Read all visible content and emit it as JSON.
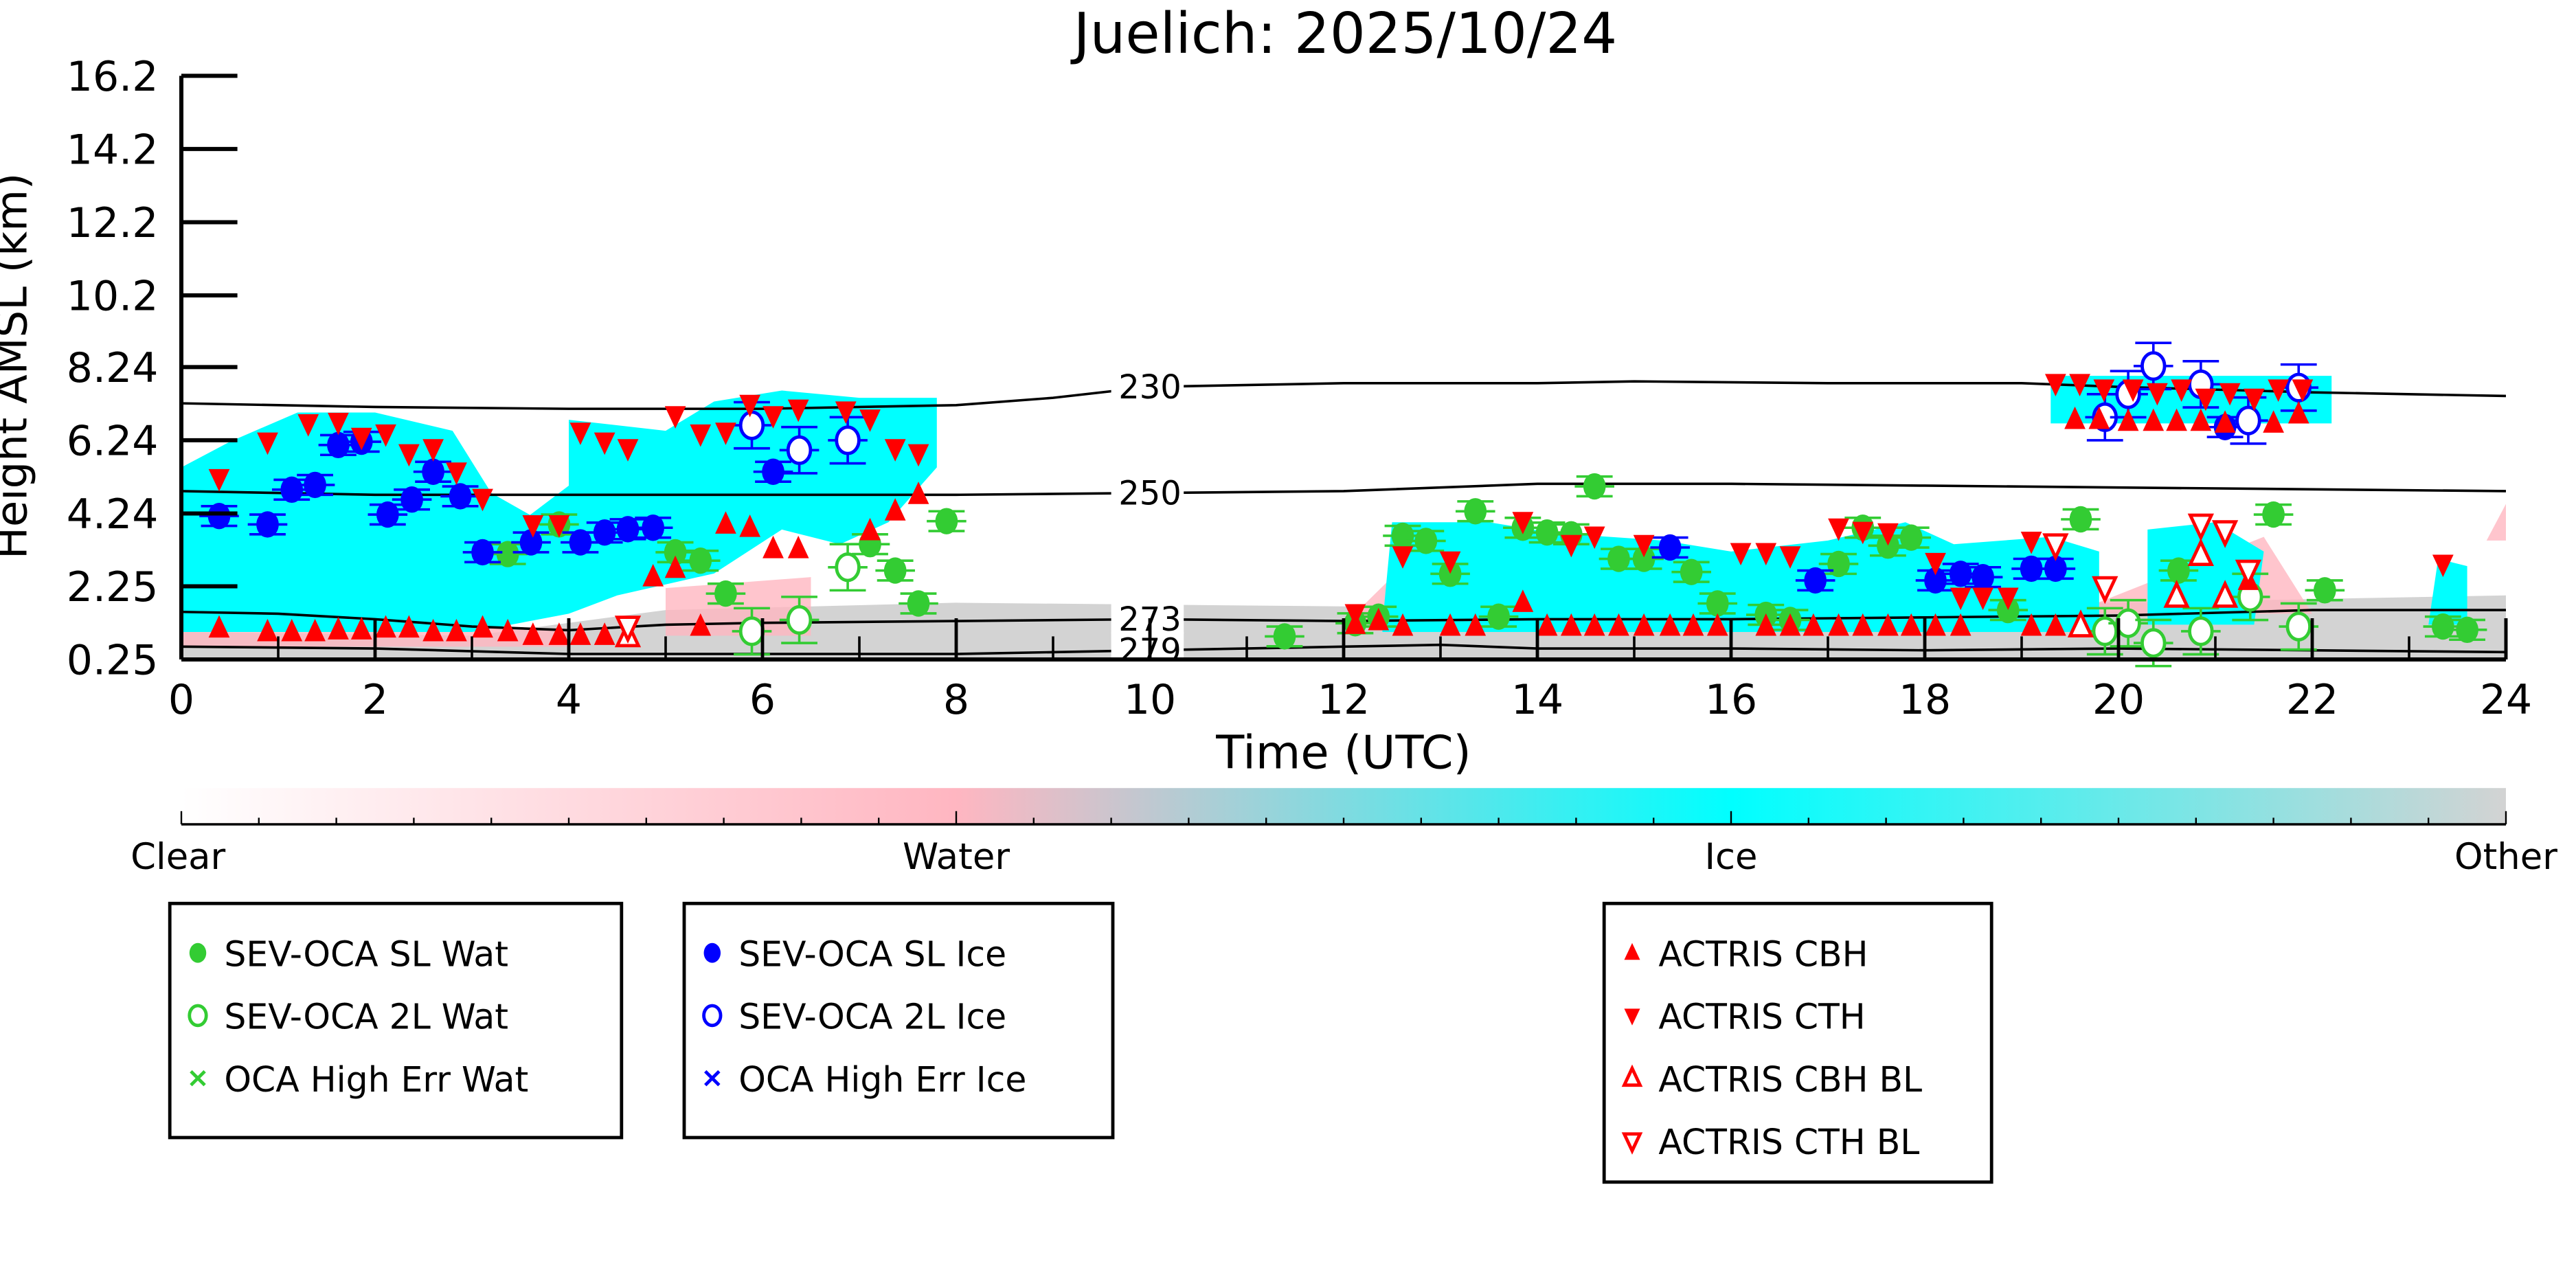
{
  "chart_data": {
    "type": "scatter",
    "title": "Juelich: 2025/10/24",
    "xlabel": "Time (UTC)",
    "ylabel": "Height AMSL (km)",
    "xlim": [
      0,
      24
    ],
    "ylim": [
      0.25,
      16.2
    ],
    "xticks": [
      "0",
      "2",
      "4",
      "6",
      "8",
      "10",
      "12",
      "14",
      "16",
      "18",
      "20",
      "22",
      "24"
    ],
    "yticks": [
      {
        "v": 0.25,
        "label": "0.25"
      },
      {
        "v": 2.25,
        "label": "2.25"
      },
      {
        "v": 4.24,
        "label": "4.24"
      },
      {
        "v": 6.24,
        "label": "6.24"
      },
      {
        "v": 8.24,
        "label": "8.24"
      },
      {
        "v": 10.2,
        "label": "10.2"
      },
      {
        "v": 12.2,
        "label": "12.2"
      },
      {
        "v": 14.2,
        "label": "14.2"
      },
      {
        "v": 16.2,
        "label": "16.2"
      }
    ],
    "contours": [
      {
        "label": "230",
        "points": [
          [
            0,
            7.25
          ],
          [
            2,
            7.15
          ],
          [
            4,
            7.1
          ],
          [
            6,
            7.1
          ],
          [
            8,
            7.2
          ],
          [
            9,
            7.4
          ],
          [
            10,
            7.7
          ],
          [
            12,
            7.8
          ],
          [
            14,
            7.8
          ],
          [
            15,
            7.85
          ],
          [
            17,
            7.8
          ],
          [
            19,
            7.8
          ],
          [
            20,
            7.7
          ],
          [
            22,
            7.55
          ],
          [
            24,
            7.45
          ]
        ]
      },
      {
        "label": "250",
        "points": [
          [
            0,
            4.85
          ],
          [
            2,
            4.75
          ],
          [
            4,
            4.75
          ],
          [
            6,
            4.75
          ],
          [
            8,
            4.75
          ],
          [
            10,
            4.8
          ],
          [
            12,
            4.85
          ],
          [
            14,
            5.05
          ],
          [
            16,
            5.05
          ],
          [
            18,
            5.0
          ],
          [
            20,
            4.95
          ],
          [
            22,
            4.9
          ],
          [
            24,
            4.85
          ]
        ]
      },
      {
        "label": "273",
        "points": [
          [
            0,
            1.55
          ],
          [
            1,
            1.5
          ],
          [
            2,
            1.35
          ],
          [
            3,
            1.15
          ],
          [
            4,
            1.05
          ],
          [
            5,
            1.2
          ],
          [
            6,
            1.25
          ],
          [
            8,
            1.3
          ],
          [
            10,
            1.35
          ],
          [
            12,
            1.3
          ],
          [
            14,
            1.35
          ],
          [
            16,
            1.35
          ],
          [
            18,
            1.4
          ],
          [
            20,
            1.45
          ],
          [
            22,
            1.6
          ],
          [
            24,
            1.6
          ]
        ]
      },
      {
        "label": "279",
        "points": [
          [
            0,
            0.6
          ],
          [
            2,
            0.55
          ],
          [
            4,
            0.4
          ],
          [
            6,
            0.4
          ],
          [
            8,
            0.4
          ],
          [
            10,
            0.5
          ],
          [
            12,
            0.6
          ],
          [
            13,
            0.65
          ],
          [
            14,
            0.55
          ],
          [
            16,
            0.55
          ],
          [
            18,
            0.5
          ],
          [
            20,
            0.55
          ],
          [
            22,
            0.5
          ],
          [
            24,
            0.45
          ]
        ]
      }
    ],
    "series": [
      {
        "name": "SEV-OCA SL Wat",
        "marker": "filled-circle",
        "color": "#33cc33",
        "points": [
          [
            3.37,
            3.13
          ],
          [
            3.9,
            3.94
          ],
          [
            5.1,
            3.18
          ],
          [
            5.36,
            2.95
          ],
          [
            5.62,
            2.05
          ],
          [
            7.11,
            3.4
          ],
          [
            7.37,
            2.68
          ],
          [
            7.61,
            1.78
          ],
          [
            7.9,
            4.03
          ],
          [
            11.39,
            0.88
          ],
          [
            12.12,
            1.24
          ],
          [
            12.36,
            1.42
          ],
          [
            12.61,
            3.63
          ],
          [
            12.85,
            3.49
          ],
          [
            13.1,
            2.59
          ],
          [
            13.36,
            4.3
          ],
          [
            13.6,
            1.42
          ],
          [
            13.85,
            3.85
          ],
          [
            14.1,
            3.72
          ],
          [
            14.35,
            3.67
          ],
          [
            14.59,
            4.98
          ],
          [
            14.84,
            3.0
          ],
          [
            15.1,
            3.0
          ],
          [
            15.59,
            2.64
          ],
          [
            15.86,
            1.78
          ],
          [
            16.36,
            1.47
          ],
          [
            16.61,
            1.33
          ],
          [
            17.11,
            2.86
          ],
          [
            17.36,
            3.85
          ],
          [
            17.62,
            3.36
          ],
          [
            17.86,
            3.58
          ],
          [
            18.86,
            1.6
          ],
          [
            19.61,
            4.08
          ],
          [
            20.62,
            2.68
          ],
          [
            21.6,
            4.21
          ],
          [
            22.13,
            2.14
          ],
          [
            23.35,
            1.15
          ],
          [
            23.6,
            1.06
          ]
        ]
      },
      {
        "name": "SEV-OCA 2L Wat",
        "marker": "open-circle",
        "color": "#33cc33",
        "points": [
          [
            5.89,
            1.02
          ],
          [
            6.38,
            1.33
          ],
          [
            6.88,
            2.77
          ],
          [
            19.86,
            1.02
          ],
          [
            20.1,
            1.24
          ],
          [
            20.36,
            0.7
          ],
          [
            20.85,
            1.02
          ],
          [
            21.36,
            1.96
          ],
          [
            21.86,
            1.15
          ]
        ]
      },
      {
        "name": "OCA High Err Wat",
        "marker": "x",
        "color": "#33cc33",
        "points": []
      },
      {
        "name": "SEV-OCA SL Ice",
        "marker": "filled-circle",
        "color": "#0000ff",
        "points": [
          [
            0.39,
            4.17
          ],
          [
            0.89,
            3.94
          ],
          [
            1.14,
            4.89
          ],
          [
            1.38,
            5.02
          ],
          [
            1.62,
            6.11
          ],
          [
            1.86,
            6.2
          ],
          [
            2.13,
            4.21
          ],
          [
            2.38,
            4.62
          ],
          [
            2.6,
            5.38
          ],
          [
            2.88,
            4.71
          ],
          [
            3.11,
            3.18
          ],
          [
            3.61,
            3.45
          ],
          [
            4.12,
            3.45
          ],
          [
            4.37,
            3.72
          ],
          [
            4.61,
            3.81
          ],
          [
            4.87,
            3.85
          ],
          [
            6.11,
            5.38
          ],
          [
            15.37,
            3.31
          ],
          [
            16.87,
            2.41
          ],
          [
            18.11,
            2.41
          ],
          [
            18.37,
            2.59
          ],
          [
            18.6,
            2.5
          ],
          [
            19.1,
            2.73
          ],
          [
            19.35,
            2.73
          ],
          [
            21.1,
            6.6
          ]
        ]
      },
      {
        "name": "SEV-OCA 2L Ice",
        "marker": "open-circle",
        "color": "#0000ff",
        "points": [
          [
            5.89,
            6.65
          ],
          [
            6.38,
            5.97
          ],
          [
            6.88,
            6.24
          ],
          [
            19.86,
            6.87
          ],
          [
            20.1,
            7.5
          ],
          [
            20.36,
            8.27
          ],
          [
            20.85,
            7.77
          ],
          [
            21.34,
            6.78
          ],
          [
            21.86,
            7.68
          ]
        ]
      },
      {
        "name": "OCA High Err Ice",
        "marker": "x",
        "color": "#0000ff",
        "points": []
      },
      {
        "name": "ACTRIS CBH",
        "marker": "filled-up",
        "color": "#ff0000",
        "points": [
          [
            0.39,
            1.1
          ],
          [
            0.89,
            1.0
          ],
          [
            1.14,
            1.0
          ],
          [
            1.38,
            1.0
          ],
          [
            1.62,
            1.05
          ],
          [
            1.86,
            1.05
          ],
          [
            2.11,
            1.1
          ],
          [
            2.35,
            1.1
          ],
          [
            2.6,
            1.0
          ],
          [
            2.84,
            1.0
          ],
          [
            3.11,
            1.1
          ],
          [
            3.37,
            1.0
          ],
          [
            3.63,
            0.9
          ],
          [
            3.9,
            0.9
          ],
          [
            4.12,
            0.9
          ],
          [
            4.37,
            0.9
          ],
          [
            4.87,
            2.5
          ],
          [
            5.1,
            2.73
          ],
          [
            5.36,
            1.15
          ],
          [
            5.62,
            3.94
          ],
          [
            5.87,
            3.85
          ],
          [
            6.11,
            3.27
          ],
          [
            6.37,
            3.27
          ],
          [
            7.11,
            3.76
          ],
          [
            7.37,
            4.3
          ],
          [
            7.61,
            4.75
          ],
          [
            12.12,
            1.2
          ],
          [
            12.36,
            1.3
          ],
          [
            12.61,
            1.15
          ],
          [
            13.1,
            1.15
          ],
          [
            13.36,
            1.15
          ],
          [
            13.85,
            1.8
          ],
          [
            14.1,
            1.15
          ],
          [
            14.35,
            1.15
          ],
          [
            14.59,
            1.15
          ],
          [
            14.84,
            1.15
          ],
          [
            15.1,
            1.15
          ],
          [
            15.37,
            1.15
          ],
          [
            15.61,
            1.15
          ],
          [
            15.86,
            1.15
          ],
          [
            16.36,
            1.15
          ],
          [
            16.61,
            1.15
          ],
          [
            16.85,
            1.15
          ],
          [
            17.11,
            1.15
          ],
          [
            17.36,
            1.15
          ],
          [
            17.62,
            1.15
          ],
          [
            17.86,
            1.15
          ],
          [
            18.11,
            1.15
          ],
          [
            18.37,
            1.15
          ],
          [
            19.1,
            1.15
          ],
          [
            19.35,
            1.15
          ],
          [
            19.61,
            1.15
          ],
          [
            19.55,
            6.8
          ],
          [
            19.8,
            6.8
          ],
          [
            20.1,
            6.75
          ],
          [
            20.36,
            6.75
          ],
          [
            20.6,
            6.75
          ],
          [
            20.85,
            6.75
          ],
          [
            21.1,
            6.7
          ],
          [
            21.6,
            6.7
          ],
          [
            21.86,
            6.95
          ],
          [
            21.34,
            2.4
          ]
        ]
      },
      {
        "name": "ACTRIS CTH",
        "marker": "filled-down",
        "color": "#ff0000",
        "points": [
          [
            0.39,
            5.2
          ],
          [
            0.89,
            6.2
          ],
          [
            1.31,
            6.7
          ],
          [
            1.62,
            6.74
          ],
          [
            1.86,
            6.33
          ],
          [
            2.11,
            6.42
          ],
          [
            2.35,
            5.88
          ],
          [
            2.6,
            6.02
          ],
          [
            2.84,
            5.38
          ],
          [
            3.11,
            4.66
          ],
          [
            3.63,
            3.94
          ],
          [
            3.9,
            3.94
          ],
          [
            4.12,
            6.47
          ],
          [
            4.37,
            6.2
          ],
          [
            4.61,
            6.02
          ],
          [
            5.1,
            6.92
          ],
          [
            5.36,
            6.42
          ],
          [
            5.62,
            6.47
          ],
          [
            5.87,
            7.23
          ],
          [
            6.11,
            6.92
          ],
          [
            6.37,
            7.1
          ],
          [
            6.86,
            7.05
          ],
          [
            7.11,
            6.83
          ],
          [
            7.37,
            6.02
          ],
          [
            7.61,
            5.88
          ],
          [
            12.12,
            1.51
          ],
          [
            12.61,
            3.09
          ],
          [
            13.1,
            2.95
          ],
          [
            13.85,
            4.03
          ],
          [
            14.35,
            3.4
          ],
          [
            14.59,
            3.63
          ],
          [
            15.1,
            3.4
          ],
          [
            16.1,
            3.18
          ],
          [
            16.36,
            3.18
          ],
          [
            16.61,
            3.09
          ],
          [
            17.11,
            3.85
          ],
          [
            17.36,
            3.76
          ],
          [
            17.62,
            3.72
          ],
          [
            18.11,
            2.91
          ],
          [
            18.37,
            1.96
          ],
          [
            18.6,
            1.96
          ],
          [
            18.86,
            1.96
          ],
          [
            19.1,
            3.49
          ],
          [
            19.35,
            3.4
          ],
          [
            19.35,
            7.8
          ],
          [
            19.6,
            7.8
          ],
          [
            19.85,
            7.65
          ],
          [
            20.15,
            7.65
          ],
          [
            20.4,
            7.55
          ],
          [
            20.65,
            7.65
          ],
          [
            20.9,
            7.4
          ],
          [
            21.15,
            7.55
          ],
          [
            21.4,
            7.4
          ],
          [
            21.65,
            7.65
          ],
          [
            21.9,
            7.65
          ],
          [
            23.35,
            2.86
          ]
        ]
      },
      {
        "name": "ACTRIS CBH BL",
        "marker": "open-up",
        "color": "#ff0000",
        "points": [
          [
            4.61,
            0.88
          ],
          [
            19.61,
            1.15
          ],
          [
            20.6,
            1.96
          ],
          [
            20.85,
            3.1
          ],
          [
            21.1,
            1.96
          ]
        ]
      },
      {
        "name": "ACTRIS CTH BL",
        "marker": "open-down",
        "color": "#ff0000",
        "points": [
          [
            4.61,
            1.15
          ],
          [
            19.35,
            3.4
          ],
          [
            19.86,
            2.23
          ],
          [
            20.85,
            3.94
          ],
          [
            21.1,
            3.76
          ],
          [
            21.34,
            2.68
          ]
        ]
      }
    ],
    "colorbar": {
      "labels": [
        "Clear",
        "Water",
        "Ice",
        "Other"
      ],
      "colors": [
        "#ffffff",
        "#ffb6c1",
        "#00ffff",
        "#d3d3d3"
      ]
    },
    "legend_placement": "bottom"
  },
  "legends": [
    [
      "SEV-OCA SL Wat",
      "SEV-OCA 2L Wat",
      "OCA High Err Wat"
    ],
    [
      "SEV-OCA SL Ice",
      "SEV-OCA 2L Ice",
      "OCA High Err Ice"
    ],
    [
      "ACTRIS CBH",
      "ACTRIS CTH",
      "ACTRIS CBH BL",
      "ACTRIS CTH BL"
    ]
  ]
}
